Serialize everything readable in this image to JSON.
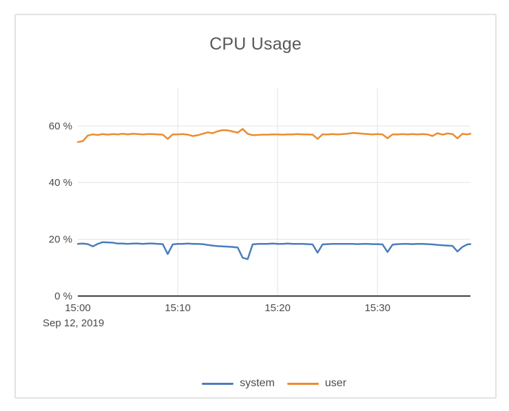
{
  "chart_data": {
    "type": "line",
    "title": "CPU Usage",
    "date_label": "Sep 12, 2019",
    "xlabel": "",
    "ylabel": "",
    "x_units": "minutes since 15:00",
    "y_units": "percent",
    "xlim": [
      0,
      39.3
    ],
    "ylim": [
      0,
      73.3
    ],
    "grid": {
      "vertical": [
        10,
        20,
        30
      ],
      "horizontal": [
        20,
        40,
        60
      ]
    },
    "xticks": [
      {
        "value": 0,
        "label": "15:00"
      },
      {
        "value": 10,
        "label": "15:10"
      },
      {
        "value": 20,
        "label": "15:20"
      },
      {
        "value": 30,
        "label": "15:30"
      }
    ],
    "yticks": [
      {
        "value": 0,
        "label": "0 %"
      },
      {
        "value": 20,
        "label": "20 %"
      },
      {
        "value": 40,
        "label": "40 %"
      },
      {
        "value": 60,
        "label": "60 %"
      }
    ],
    "colors": {
      "axis": "#404040",
      "grid": "#e3e3e3",
      "tick_text": "#4a4a4a",
      "title_text": "#57585a",
      "system": "#4a7cba",
      "user": "#ec8b2d"
    },
    "legend": {
      "position": "bottom",
      "items": [
        {
          "name": "system",
          "color": "#4a7cba"
        },
        {
          "name": "user",
          "color": "#ec8b2d"
        }
      ]
    },
    "x": [
      0,
      0.5,
      1,
      1.5,
      2,
      2.5,
      3,
      3.5,
      4,
      4.5,
      5,
      5.5,
      6,
      6.5,
      7,
      7.5,
      8,
      8.5,
      9,
      9.5,
      10,
      10.5,
      11,
      11.5,
      12,
      12.5,
      13,
      13.5,
      14,
      14.5,
      15,
      15.5,
      16,
      16.5,
      17,
      17.5,
      18,
      18.5,
      19,
      19.5,
      20,
      20.5,
      21,
      21.5,
      22,
      22.5,
      23,
      23.5,
      24,
      24.5,
      25,
      25.5,
      26,
      26.5,
      27,
      27.5,
      28,
      28.5,
      29,
      29.5,
      30,
      30.5,
      31,
      31.5,
      32,
      32.5,
      33,
      33.5,
      34,
      34.5,
      35,
      35.5,
      36,
      36.5,
      37,
      37.5,
      38,
      38.5,
      39,
      39.3
    ],
    "series": [
      {
        "name": "system",
        "color": "#4a7cba",
        "values": [
          18.4,
          18.5,
          18.3,
          17.5,
          18.4,
          19.0,
          18.9,
          18.8,
          18.5,
          18.5,
          18.4,
          18.5,
          18.5,
          18.4,
          18.5,
          18.5,
          18.4,
          18.3,
          14.8,
          18.2,
          18.4,
          18.4,
          18.5,
          18.4,
          18.4,
          18.3,
          18.0,
          17.8,
          17.6,
          17.5,
          17.4,
          17.3,
          17.1,
          13.5,
          13.0,
          18.2,
          18.4,
          18.4,
          18.4,
          18.5,
          18.4,
          18.4,
          18.5,
          18.4,
          18.4,
          18.4,
          18.3,
          18.2,
          15.3,
          18.2,
          18.3,
          18.4,
          18.4,
          18.4,
          18.4,
          18.4,
          18.3,
          18.4,
          18.4,
          18.3,
          18.3,
          18.2,
          15.5,
          18.1,
          18.3,
          18.4,
          18.4,
          18.3,
          18.4,
          18.4,
          18.3,
          18.2,
          18.0,
          17.9,
          17.8,
          17.7,
          15.7,
          17.3,
          18.2,
          18.3
        ]
      },
      {
        "name": "user",
        "color": "#ec8b2d",
        "values": [
          54.3,
          54.6,
          56.6,
          57.0,
          56.8,
          57.1,
          56.9,
          57.1,
          57.0,
          57.2,
          57.0,
          57.2,
          57.1,
          57.0,
          57.1,
          57.1,
          57.0,
          56.9,
          55.4,
          57.0,
          57.0,
          57.1,
          56.9,
          56.4,
          56.7,
          57.2,
          57.7,
          57.4,
          58.1,
          58.5,
          58.4,
          58.0,
          57.6,
          58.9,
          57.2,
          56.7,
          56.8,
          56.9,
          56.9,
          57.0,
          57.0,
          56.9,
          57.0,
          57.0,
          57.1,
          57.0,
          57.0,
          56.9,
          55.4,
          57.0,
          57.0,
          57.1,
          57.0,
          57.1,
          57.2,
          57.5,
          57.4,
          57.2,
          57.1,
          57.0,
          57.1,
          57.0,
          55.6,
          57.0,
          57.0,
          57.1,
          57.0,
          57.1,
          57.0,
          57.1,
          57.0,
          56.4,
          57.4,
          56.9,
          57.3,
          57.1,
          55.6,
          57.2,
          57.0,
          57.2
        ]
      }
    ]
  }
}
